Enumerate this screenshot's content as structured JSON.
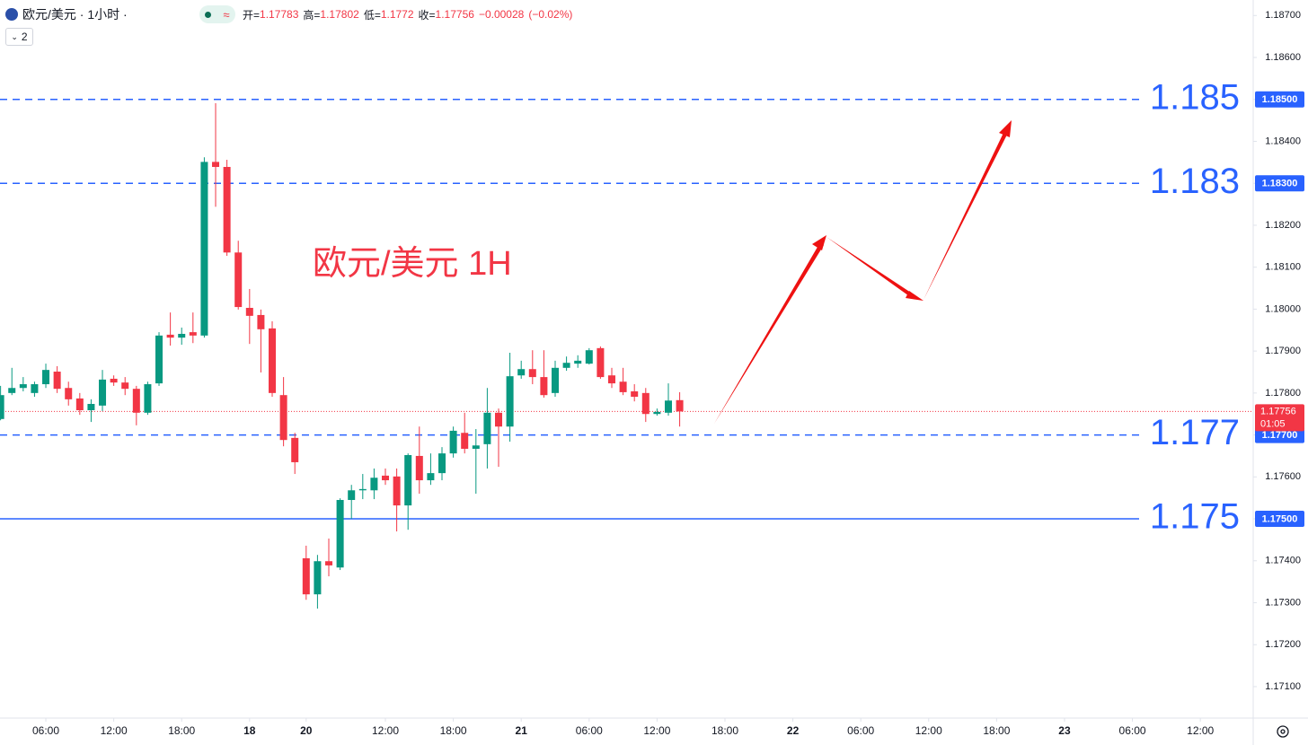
{
  "chart_data": {
    "type": "candlestick",
    "title": "欧元/美元 · 1小时 ·",
    "indicator_count": "2",
    "legend": {
      "open": "开=",
      "high": "高=",
      "low": "低=",
      "close": "收=",
      "change": "−0.00028",
      "change_pct": "(−0.02%)"
    },
    "annotation": "欧元/美元 1H",
    "countdown": "01:05",
    "up_color": "#089981",
    "down_color": "#f23645",
    "open": [
      1.17738,
      1.178,
      1.17812,
      1.178,
      1.17821,
      1.17851,
      1.17812,
      1.17787,
      1.17759,
      1.1777,
      1.17834,
      1.17825,
      1.1781,
      1.17753,
      1.17823,
      1.17939,
      1.17932,
      1.17945,
      1.17937,
      1.18351,
      1.18339,
      1.18135,
      1.18003,
      1.17986,
      1.17954,
      1.17795,
      1.17693,
      1.17406,
      1.1732,
      1.17399,
      1.17384,
      1.17545,
      1.17568,
      1.17568,
      1.17603,
      1.17601,
      1.17532,
      1.1765,
      1.17592,
      1.17609,
      1.17656,
      1.17705,
      1.17667,
      1.17678,
      1.17753,
      1.1772,
      1.17842,
      1.17857,
      1.17838,
      1.178,
      1.1786,
      1.1787,
      1.1787,
      1.17907,
      1.17842,
      1.17827,
      1.17804,
      1.178,
      1.1775,
      1.17753,
      1.17783
    ],
    "high": [
      1.17817,
      1.1786,
      1.17838,
      1.17827,
      1.1787,
      1.17864,
      1.17827,
      1.178,
      1.17785,
      1.17855,
      1.17842,
      1.17838,
      1.17817,
      1.17827,
      1.17945,
      1.17992,
      1.17956,
      1.17992,
      1.18362,
      1.18491,
      1.18356,
      1.18163,
      1.18048,
      1.17999,
      1.17971,
      1.17838,
      1.17705,
      1.17436,
      1.17414,
      1.17453,
      1.17549,
      1.17581,
      1.17607,
      1.1762,
      1.1762,
      1.1762,
      1.17656,
      1.1772,
      1.17656,
      1.17671,
      1.1772,
      1.17753,
      1.17714,
      1.17812,
      1.17763,
      1.17896,
      1.17877,
      1.17902,
      1.17902,
      1.17877,
      1.17887,
      1.1789,
      1.17907,
      1.17911,
      1.1786,
      1.1786,
      1.17821,
      1.17812,
      1.17763,
      1.17823,
      1.17802
    ],
    "low": [
      1.17735,
      1.17795,
      1.17804,
      1.17791,
      1.17812,
      1.178,
      1.1777,
      1.17748,
      1.17731,
      1.17757,
      1.17817,
      1.17795,
      1.17723,
      1.17748,
      1.17817,
      1.17913,
      1.17915,
      1.17919,
      1.17932,
      1.18244,
      1.18127,
      1.17999,
      1.17917,
      1.17849,
      1.17791,
      1.17673,
      1.17607,
      1.17307,
      1.17286,
      1.17363,
      1.17378,
      1.175,
      1.17547,
      1.17547,
      1.17581,
      1.1747,
      1.17474,
      1.1756,
      1.17581,
      1.17592,
      1.17646,
      1.17656,
      1.1756,
      1.1762,
      1.17624,
      1.17684,
      1.17834,
      1.17821,
      1.17789,
      1.17791,
      1.17853,
      1.1786,
      1.17868,
      1.17834,
      1.17812,
      1.17795,
      1.1778,
      1.17731,
      1.17746,
      1.17746,
      1.1772
    ],
    "close": [
      1.17795,
      1.17812,
      1.17821,
      1.17821,
      1.17855,
      1.1781,
      1.17785,
      1.17759,
      1.17774,
      1.17832,
      1.17825,
      1.1781,
      1.17753,
      1.17821,
      1.17937,
      1.17932,
      1.17941,
      1.17937,
      1.18351,
      1.18339,
      1.18135,
      1.18005,
      1.17984,
      1.17952,
      1.178,
      1.17688,
      1.17635,
      1.1732,
      1.17399,
      1.17389,
      1.17545,
      1.17568,
      1.17571,
      1.17598,
      1.17592,
      1.17532,
      1.17652,
      1.17592,
      1.17609,
      1.17656,
      1.1771,
      1.17667,
      1.17675,
      1.17753,
      1.1772,
      1.1784,
      1.17857,
      1.17838,
      1.17795,
      1.1786,
      1.17872,
      1.17877,
      1.17902,
      1.17838,
      1.17823,
      1.17802,
      1.17791,
      1.1775,
      1.17755,
      1.17782,
      1.17756
    ],
    "xlim": [
      -0.05,
      110.67
    ],
    "xticks": [
      {
        "value": 4,
        "label": "06:00"
      },
      {
        "value": 10,
        "label": "12:00"
      },
      {
        "value": 16,
        "label": "18:00"
      },
      {
        "value": 22,
        "label": "18"
      },
      {
        "value": 27,
        "label": "20"
      },
      {
        "value": 34,
        "label": "12:00"
      },
      {
        "value": 40,
        "label": "18:00"
      },
      {
        "value": 46,
        "label": "21"
      },
      {
        "value": 52,
        "label": "06:00"
      },
      {
        "value": 58,
        "label": "12:00"
      },
      {
        "value": 64,
        "label": "18:00"
      },
      {
        "value": 70,
        "label": "22"
      },
      {
        "value": 76,
        "label": "06:00"
      },
      {
        "value": 82,
        "label": "12:00"
      },
      {
        "value": 88,
        "label": "18:00"
      },
      {
        "value": 94,
        "label": "23"
      },
      {
        "value": 100,
        "label": "06:00"
      },
      {
        "value": 106,
        "label": "12:00"
      }
    ],
    "ylim": [
      1.17025,
      1.18737
    ],
    "yticks": [
      {
        "value": 1.171,
        "label": "1.17100"
      },
      {
        "value": 1.172,
        "label": "1.17200"
      },
      {
        "value": 1.173,
        "label": "1.17300"
      },
      {
        "value": 1.174,
        "label": "1.17400"
      },
      {
        "value": 1.175,
        "label": "1.17500"
      },
      {
        "value": 1.176,
        "label": "1.17600"
      },
      {
        "value": 1.177,
        "label": "1.17700"
      },
      {
        "value": 1.178,
        "label": "1.17800"
      },
      {
        "value": 1.179,
        "label": "1.17900"
      },
      {
        "value": 1.18,
        "label": "1.18000"
      },
      {
        "value": 1.181,
        "label": "1.18100"
      },
      {
        "value": 1.182,
        "label": "1.18200"
      },
      {
        "value": 1.183,
        "label": "1.18300"
      },
      {
        "value": 1.184,
        "label": "1.18400"
      },
      {
        "value": 1.185,
        "label": "1.18500"
      },
      {
        "value": 1.186,
        "label": "1.18600"
      },
      {
        "value": 1.187,
        "label": "1.18700"
      }
    ],
    "grid": false,
    "levels": [
      {
        "value": 1.185,
        "label": "1.18500",
        "dashed": true,
        "color": "#2962ff"
      },
      {
        "value": 1.183,
        "label": "1.18300",
        "dashed": true,
        "color": "#2962ff"
      },
      {
        "value": 1.177,
        "label": "1.17700",
        "dashed": true,
        "color": "#2962ff"
      },
      {
        "value": 1.175,
        "label": "1.17500",
        "dashed": false,
        "color": "#2962ff"
      }
    ]
  }
}
